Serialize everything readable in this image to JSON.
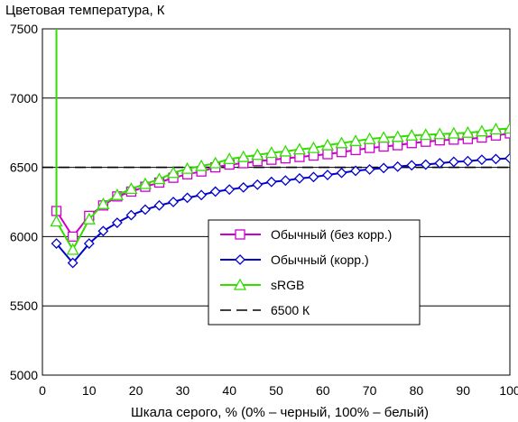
{
  "chart_data": {
    "type": "line",
    "title": "",
    "ylabel": "Цветовая температура, К",
    "xlabel": "Шкала серого, % (0% – черный, 100% – белый)",
    "xlim": [
      0,
      100
    ],
    "ylim": [
      5000,
      7500
    ],
    "xticks": [
      0,
      10,
      20,
      30,
      40,
      50,
      60,
      70,
      80,
      90,
      100
    ],
    "yticks": [
      5000,
      5500,
      6000,
      6500,
      7000,
      7500
    ],
    "grid": "horizontal",
    "legend_position": "center-right",
    "x": [
      3,
      6.5,
      10,
      13,
      16,
      19,
      22,
      25,
      28,
      31,
      34,
      37,
      40,
      43,
      46,
      49,
      52,
      55,
      58,
      61,
      64,
      67,
      70,
      73,
      76,
      79,
      82,
      85,
      88,
      91,
      94,
      97,
      100
    ],
    "series": [
      {
        "name": "Обычный (без корр.)",
        "color": "#cc00cc",
        "marker": "square",
        "values": [
          6185,
          6000,
          6150,
          6225,
          6290,
          6325,
          6360,
          6390,
          6425,
          6450,
          6470,
          6500,
          6520,
          6530,
          6545,
          6555,
          6565,
          6575,
          6585,
          6595,
          6610,
          6625,
          6640,
          6650,
          6660,
          6675,
          6685,
          6695,
          6700,
          6705,
          6715,
          6730,
          6745
        ]
      },
      {
        "name": "Обычный (корр.)",
        "color": "#0000cc",
        "marker": "diamond",
        "values": [
          5950,
          5810,
          5950,
          6040,
          6100,
          6155,
          6195,
          6225,
          6250,
          6280,
          6300,
          6325,
          6340,
          6355,
          6375,
          6395,
          6405,
          6420,
          6430,
          6445,
          6460,
          6475,
          6485,
          6495,
          6505,
          6515,
          6520,
          6530,
          6540,
          6545,
          6555,
          6560,
          6565
        ]
      },
      {
        "name": "sRGB",
        "color": "#33dd00",
        "marker": "triangle",
        "values": [
          6110,
          5905,
          6125,
          6235,
          6300,
          6345,
          6380,
          6415,
          6460,
          6490,
          6510,
          6530,
          6560,
          6575,
          6590,
          6605,
          6615,
          6630,
          6640,
          6660,
          6675,
          6690,
          6705,
          6715,
          6720,
          6730,
          6735,
          6740,
          6745,
          6750,
          6760,
          6775,
          6780
        ]
      },
      {
        "name": "6500 К",
        "color": "#000000",
        "marker": "none",
        "dashed": true,
        "x": [
          0,
          100
        ],
        "values": [
          6500,
          6500
        ]
      }
    ],
    "srgb_spike": {
      "x": 3,
      "from": 6110,
      "to": 7500
    }
  }
}
